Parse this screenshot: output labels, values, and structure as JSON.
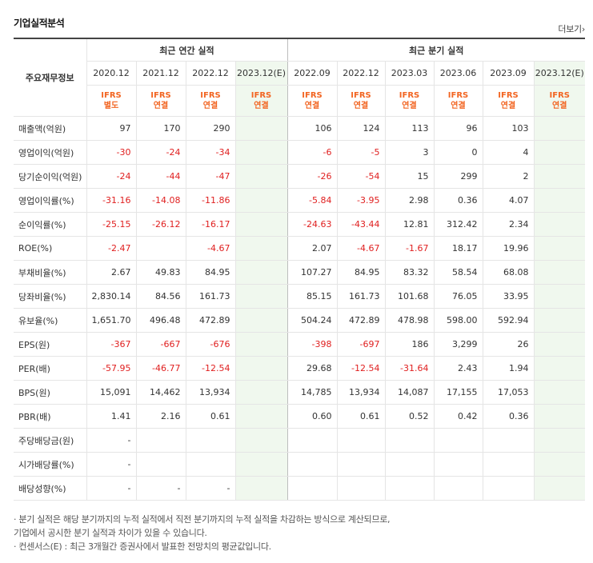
{
  "title": "기업실적분석",
  "more_label": "더보기",
  "more_icon": "chevron-right",
  "header": {
    "corner": "주요재무정보",
    "annual_label": "최근 연간 실적",
    "quarterly_label": "최근 분기 실적",
    "annual_dates": [
      "2020.12",
      "2021.12",
      "2022.12",
      "2023.12(E)"
    ],
    "quarterly_dates": [
      "2022.09",
      "2022.12",
      "2023.03",
      "2023.06",
      "2023.09",
      "2023.12(E)"
    ],
    "annual_ifrs": [
      [
        "IFRS",
        "별도"
      ],
      [
        "IFRS",
        "연결"
      ],
      [
        "IFRS",
        "연결"
      ],
      [
        "IFRS",
        "연결"
      ]
    ],
    "quarterly_ifrs": [
      [
        "IFRS",
        "연결"
      ],
      [
        "IFRS",
        "연결"
      ],
      [
        "IFRS",
        "연결"
      ],
      [
        "IFRS",
        "연결"
      ],
      [
        "IFRS",
        "연결"
      ],
      [
        "IFRS",
        "연결"
      ]
    ]
  },
  "rows": [
    {
      "label": "매출액(억원)",
      "annual": [
        "97",
        "170",
        "290",
        ""
      ],
      "quarterly": [
        "106",
        "124",
        "113",
        "96",
        "103",
        ""
      ]
    },
    {
      "label": "영업이익(억원)",
      "annual": [
        "-30",
        "-24",
        "-34",
        ""
      ],
      "quarterly": [
        "-6",
        "-5",
        "3",
        "0",
        "4",
        ""
      ]
    },
    {
      "label": "당기순이익(억원)",
      "annual": [
        "-24",
        "-44",
        "-47",
        ""
      ],
      "quarterly": [
        "-26",
        "-54",
        "15",
        "299",
        "2",
        ""
      ]
    },
    {
      "label": "영업이익률(%)",
      "annual": [
        "-31.16",
        "-14.08",
        "-11.86",
        ""
      ],
      "quarterly": [
        "-5.84",
        "-3.95",
        "2.98",
        "0.36",
        "4.07",
        ""
      ]
    },
    {
      "label": "순이익률(%)",
      "annual": [
        "-25.15",
        "-26.12",
        "-16.17",
        ""
      ],
      "quarterly": [
        "-24.63",
        "-43.44",
        "12.81",
        "312.42",
        "2.34",
        ""
      ]
    },
    {
      "label": "ROE(%)",
      "annual": [
        "-2.47",
        "",
        "-4.67",
        ""
      ],
      "quarterly": [
        "2.07",
        "-4.67",
        "-1.67",
        "18.17",
        "19.96",
        ""
      ]
    },
    {
      "label": "부채비율(%)",
      "annual": [
        "2.67",
        "49.83",
        "84.95",
        ""
      ],
      "quarterly": [
        "107.27",
        "84.95",
        "83.32",
        "58.54",
        "68.08",
        ""
      ]
    },
    {
      "label": "당좌비율(%)",
      "annual": [
        "2,830.14",
        "84.56",
        "161.73",
        ""
      ],
      "quarterly": [
        "85.15",
        "161.73",
        "101.68",
        "76.05",
        "33.95",
        ""
      ]
    },
    {
      "label": "유보율(%)",
      "annual": [
        "1,651.70",
        "496.48",
        "472.89",
        ""
      ],
      "quarterly": [
        "504.24",
        "472.89",
        "478.98",
        "598.00",
        "592.94",
        ""
      ]
    },
    {
      "label": "EPS(원)",
      "annual": [
        "-367",
        "-667",
        "-676",
        ""
      ],
      "quarterly": [
        "-398",
        "-697",
        "186",
        "3,299",
        "26",
        ""
      ]
    },
    {
      "label": "PER(배)",
      "annual": [
        "-57.95",
        "-46.77",
        "-12.54",
        ""
      ],
      "quarterly": [
        "29.68",
        "-12.54",
        "-31.64",
        "2.43",
        "1.94",
        ""
      ]
    },
    {
      "label": "BPS(원)",
      "annual": [
        "15,091",
        "14,462",
        "13,934",
        ""
      ],
      "quarterly": [
        "14,785",
        "13,934",
        "14,087",
        "17,155",
        "17,053",
        ""
      ]
    },
    {
      "label": "PBR(배)",
      "annual": [
        "1.41",
        "2.16",
        "0.61",
        ""
      ],
      "quarterly": [
        "0.60",
        "0.61",
        "0.52",
        "0.42",
        "0.36",
        ""
      ]
    },
    {
      "label": "주당배당금(원)",
      "annual": [
        "-",
        "",
        "",
        ""
      ],
      "quarterly": [
        "",
        "",
        "",
        "",
        "",
        ""
      ]
    },
    {
      "label": "시가배당률(%)",
      "annual": [
        "-",
        "",
        "",
        ""
      ],
      "quarterly": [
        "",
        "",
        "",
        "",
        "",
        ""
      ]
    },
    {
      "label": "배당성향(%)",
      "annual": [
        "-",
        "-",
        "-",
        ""
      ],
      "quarterly": [
        "",
        "",
        "",
        "",
        "",
        ""
      ]
    }
  ],
  "notes": [
    "· 분기 실적은 해당 분기까지의 누적 실적에서 직전 분기까지의 누적 실적을 차감하는 방식으로 계산되므로,",
    "  기업에서 공시한 분기 실적과 차이가 있을 수 있습니다.",
    "· 컨센서스(E) : 최근 3개월간 증권사에서 발표한 전망치의 평균값입니다."
  ]
}
